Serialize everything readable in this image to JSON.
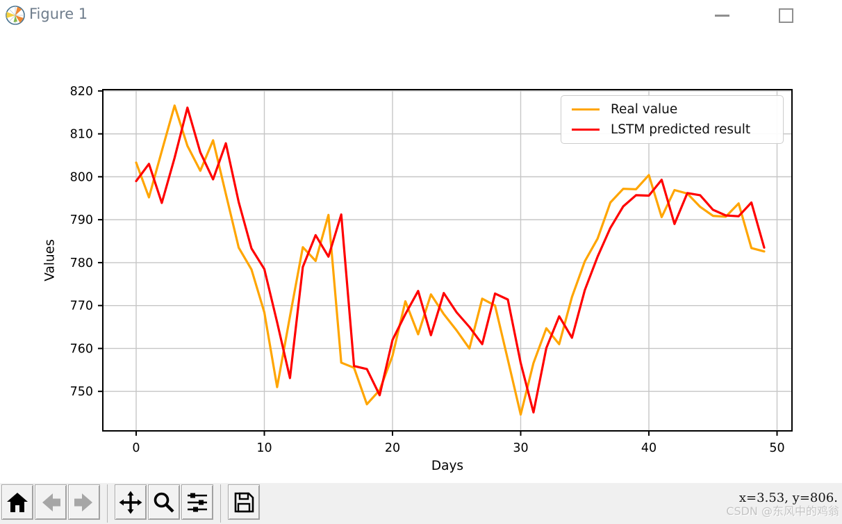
{
  "window": {
    "title": "Figure 1",
    "controls": {
      "minimize": "minimize",
      "maximize": "maximize"
    }
  },
  "chart_data": {
    "type": "line",
    "title": "",
    "xlabel": "Days",
    "ylabel": "Values",
    "x_unit": "day index 0-49",
    "xlim": [
      -2.6,
      51.2
    ],
    "ylim": [
      740.8,
      820.3
    ],
    "xticks": [
      0,
      10,
      20,
      30,
      40,
      50
    ],
    "yticks": [
      750,
      760,
      770,
      780,
      790,
      800,
      810,
      820
    ],
    "grid": true,
    "legend_position": "upper right",
    "series": [
      {
        "name": "Real value",
        "color": "#FFA500",
        "values": [
          803.3,
          795.2,
          806.0,
          816.6,
          807.2,
          801.4,
          808.5,
          796.0,
          783.5,
          778.4,
          768.4,
          751.0,
          767.5,
          783.6,
          780.4,
          791.1,
          756.7,
          755.5,
          747.0,
          750.3,
          758.3,
          771.0,
          763.3,
          772.6,
          768.0,
          764.2,
          760.0,
          771.6,
          770.0,
          757.4,
          744.6,
          756.6,
          764.7,
          761.0,
          772.0,
          780.3,
          785.6,
          794.0,
          797.2,
          797.1,
          800.4,
          790.6,
          796.9,
          796.1,
          793.0,
          790.9,
          790.7,
          793.8,
          783.4,
          782.6
        ]
      },
      {
        "name": "LSTM predicted result",
        "color": "#FF0000",
        "values": [
          799.0,
          803.0,
          793.9,
          804.4,
          816.1,
          805.7,
          799.4,
          807.8,
          794.1,
          783.3,
          778.5,
          766.1,
          753.1,
          779.0,
          786.4,
          781.4,
          791.2,
          755.9,
          755.2,
          749.1,
          762.0,
          768.0,
          773.4,
          763.1,
          772.9,
          768.4,
          765.0,
          761.0,
          772.8,
          771.4,
          756.6,
          745.1,
          760.1,
          767.5,
          762.5,
          773.6,
          781.4,
          788.1,
          793.1,
          795.7,
          795.6,
          799.3,
          789.0,
          796.2,
          795.7,
          792.3,
          791.0,
          790.8,
          794.0,
          783.5
        ]
      }
    ]
  },
  "toolbar": {
    "buttons": [
      {
        "name": "home",
        "icon": "home-icon",
        "disabled": false
      },
      {
        "name": "back",
        "icon": "arrow-left-icon",
        "disabled": true
      },
      {
        "name": "forward",
        "icon": "arrow-right-icon",
        "disabled": true
      },
      {
        "name": "pan",
        "icon": "move-cross-icon",
        "disabled": false
      },
      {
        "name": "zoom-to-rect",
        "icon": "magnifier-icon",
        "disabled": false
      },
      {
        "name": "configure-subplots",
        "icon": "sliders-icon",
        "disabled": false
      },
      {
        "name": "save",
        "icon": "floppy-disk-icon",
        "disabled": false
      }
    ]
  },
  "statusbar": {
    "coordinates": "x=3.53, y=806.",
    "watermark": "CSDN @东风中的鸡翁"
  }
}
